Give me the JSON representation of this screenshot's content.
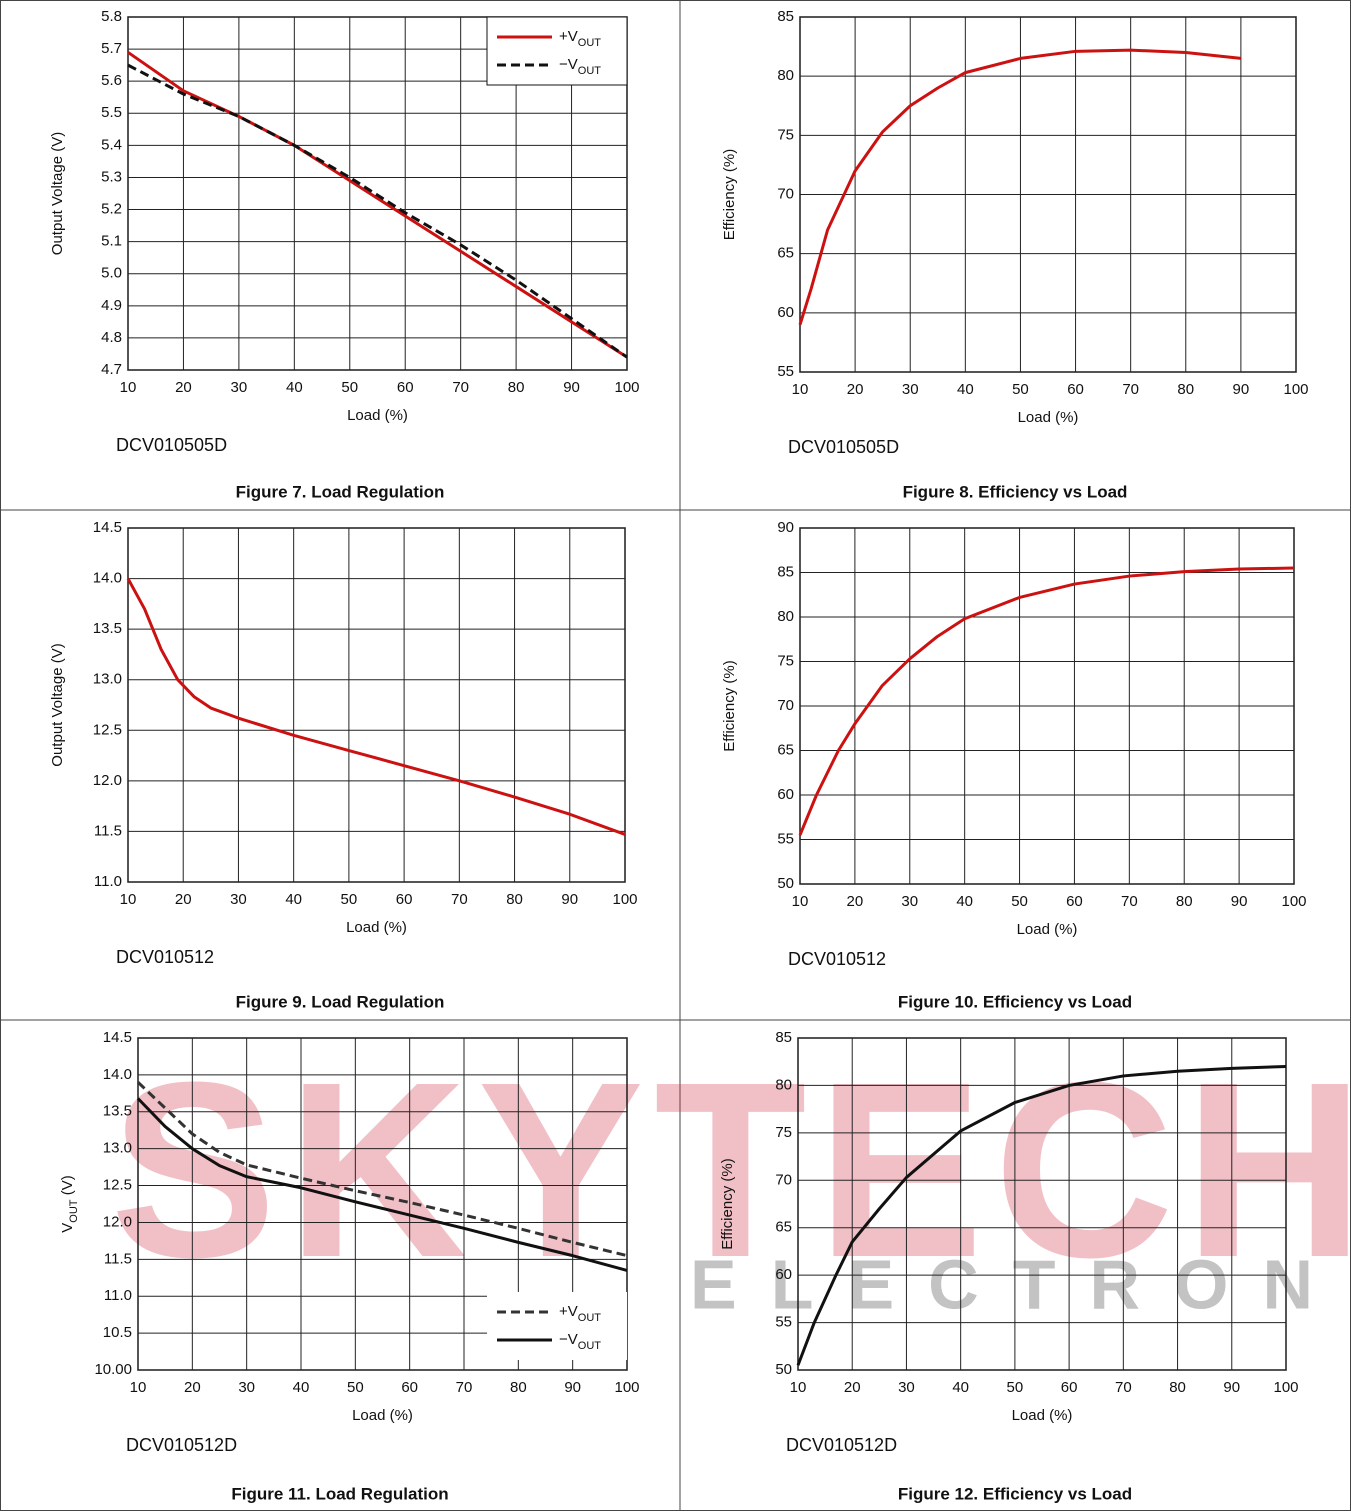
{
  "watermark": {
    "brand": "SKYTECH",
    "tagline": "ELECTRONIC"
  },
  "chart_data": [
    {
      "type": "line",
      "title": "Figure 7. Load Regulation",
      "annotation": "DCV010505D",
      "x_label": "Load (%)",
      "y_label": "Output Voltage (V)",
      "x": [
        10,
        20,
        30,
        40,
        50,
        60,
        70,
        80,
        90,
        100
      ],
      "series": [
        {
          "name": "+VOUT",
          "color": "#cc1111",
          "dash": false,
          "values": [
            5.69,
            5.57,
            5.49,
            5.4,
            5.29,
            5.18,
            5.07,
            4.96,
            4.85,
            4.74
          ]
        },
        {
          "name": "−VOUT",
          "color": "#111111",
          "dash": true,
          "values": [
            5.65,
            5.56,
            5.49,
            5.4,
            5.3,
            5.19,
            5.09,
            4.98,
            4.86,
            4.74
          ]
        }
      ],
      "legend": "upper right",
      "xlim": [
        10,
        100
      ],
      "xticks": [
        10,
        20,
        30,
        40,
        50,
        60,
        70,
        80,
        90,
        100
      ],
      "ylim": [
        4.7,
        5.8
      ],
      "yticks": [
        4.7,
        4.8,
        4.9,
        {
          "value": 5,
          "label": "5.0"
        },
        5.1,
        5.2,
        5.3,
        5.4,
        5.5,
        5.6,
        5.7,
        5.8
      ],
      "grid": true
    },
    {
      "type": "line",
      "title": "Figure 8. Efficiency vs Load",
      "annotation": "DCV010505D",
      "x_label": "Load (%)",
      "y_label": "Efficiency (%)",
      "x": [
        10,
        12,
        15,
        20,
        25,
        30,
        35,
        40,
        50,
        60,
        70,
        80,
        90
      ],
      "values": [
        59,
        62,
        67,
        72,
        75.3,
        77.5,
        79,
        80.3,
        81.5,
        82.1,
        82.2,
        82.0,
        81.5
      ],
      "color": "#cc1111",
      "xlim": [
        10,
        100
      ],
      "xticks": [
        10,
        20,
        30,
        40,
        50,
        60,
        70,
        80,
        90,
        100
      ],
      "ylim": [
        55,
        85
      ],
      "yticks": [
        55,
        60,
        65,
        70,
        75,
        80,
        85
      ],
      "grid": true
    },
    {
      "type": "line",
      "title": "Figure 9. Load Regulation",
      "annotation": "DCV010512",
      "x_label": "Load (%)",
      "y_label": "Output Voltage (V)",
      "x": [
        10,
        13,
        16,
        19,
        22,
        25,
        30,
        40,
        50,
        60,
        70,
        80,
        90,
        100
      ],
      "values": [
        14.0,
        13.7,
        13.3,
        13.0,
        12.83,
        12.72,
        12.62,
        12.45,
        12.3,
        12.15,
        12.0,
        11.84,
        11.67,
        11.47
      ],
      "color": "#cc1111",
      "xlim": [
        10,
        100
      ],
      "xticks": [
        10,
        20,
        30,
        40,
        50,
        60,
        70,
        80,
        90,
        100
      ],
      "ylim": [
        11,
        14.5
      ],
      "yticks": [
        {
          "value": 11,
          "label": "11.0"
        },
        11.5,
        {
          "value": 12,
          "label": "12.0"
        },
        12.5,
        {
          "value": 13,
          "label": "13.0"
        },
        13.5,
        {
          "value": 14,
          "label": "14.0"
        },
        14.5
      ],
      "grid": true
    },
    {
      "type": "line",
      "title": "Figure 10. Efficiency vs Load",
      "annotation": "DCV010512",
      "x_label": "Load (%)",
      "y_label": "Efficiency (%)",
      "x": [
        10,
        13,
        17,
        20,
        25,
        30,
        35,
        40,
        50,
        60,
        70,
        80,
        90,
        100
      ],
      "values": [
        55.5,
        60,
        65,
        68,
        72.3,
        75.3,
        77.8,
        79.8,
        82.2,
        83.7,
        84.6,
        85.1,
        85.4,
        85.5
      ],
      "color": "#cc1111",
      "xlim": [
        10,
        100
      ],
      "xticks": [
        10,
        20,
        30,
        40,
        50,
        60,
        70,
        80,
        90,
        100
      ],
      "ylim": [
        50,
        90
      ],
      "yticks": [
        50,
        55,
        60,
        65,
        70,
        75,
        80,
        85,
        90
      ],
      "grid": true
    },
    {
      "type": "line",
      "title": "Figure 11. Load Regulation",
      "annotation": "DCV010512D",
      "x_label": "Load (%)",
      "y_label": "VOUT (V)",
      "x": [
        10,
        15,
        20,
        25,
        30,
        40,
        50,
        60,
        70,
        80,
        90,
        100
      ],
      "series": [
        {
          "name": "+VOUT",
          "color": "#333333",
          "dash": true,
          "values": [
            13.9,
            13.55,
            13.2,
            12.95,
            12.78,
            12.6,
            12.43,
            12.27,
            12.1,
            11.92,
            11.73,
            11.55
          ]
        },
        {
          "name": "−VOUT",
          "color": "#111111",
          "dash": false,
          "values": [
            13.68,
            13.3,
            13.0,
            12.77,
            12.62,
            12.47,
            12.28,
            12.1,
            11.92,
            11.73,
            11.55,
            11.35
          ]
        }
      ],
      "legend": "lower right",
      "xlim": [
        10,
        100
      ],
      "xticks": [
        10,
        20,
        30,
        40,
        50,
        60,
        70,
        80,
        90,
        100
      ],
      "ylim": [
        10,
        14.5
      ],
      "yticks": [
        {
          "value": 10,
          "label": "10.00"
        },
        10.5,
        {
          "value": 11,
          "label": "11.0"
        },
        11.5,
        {
          "value": 12,
          "label": "12.0"
        },
        12.5,
        {
          "value": 13,
          "label": "13.0"
        },
        13.5,
        {
          "value": 14,
          "label": "14.0"
        },
        14.5
      ],
      "grid": true
    },
    {
      "type": "line",
      "title": "Figure 12. Efficiency vs Load",
      "annotation": "DCV010512D",
      "x_label": "Load (%)",
      "y_label": "Efficiency (%)",
      "x": [
        10,
        13,
        17,
        20,
        25,
        30,
        40,
        50,
        60,
        70,
        80,
        90,
        100
      ],
      "values": [
        50.5,
        55,
        60,
        63.5,
        67,
        70.3,
        75.2,
        78.2,
        80,
        81,
        81.5,
        81.8,
        82
      ],
      "color": "#111111",
      "xlim": [
        10,
        100
      ],
      "xticks": [
        10,
        20,
        30,
        40,
        50,
        60,
        70,
        80,
        90,
        100
      ],
      "ylim": [
        50,
        85
      ],
      "yticks": [
        50,
        55,
        60,
        65,
        70,
        75,
        80,
        85
      ],
      "grid": true
    }
  ]
}
